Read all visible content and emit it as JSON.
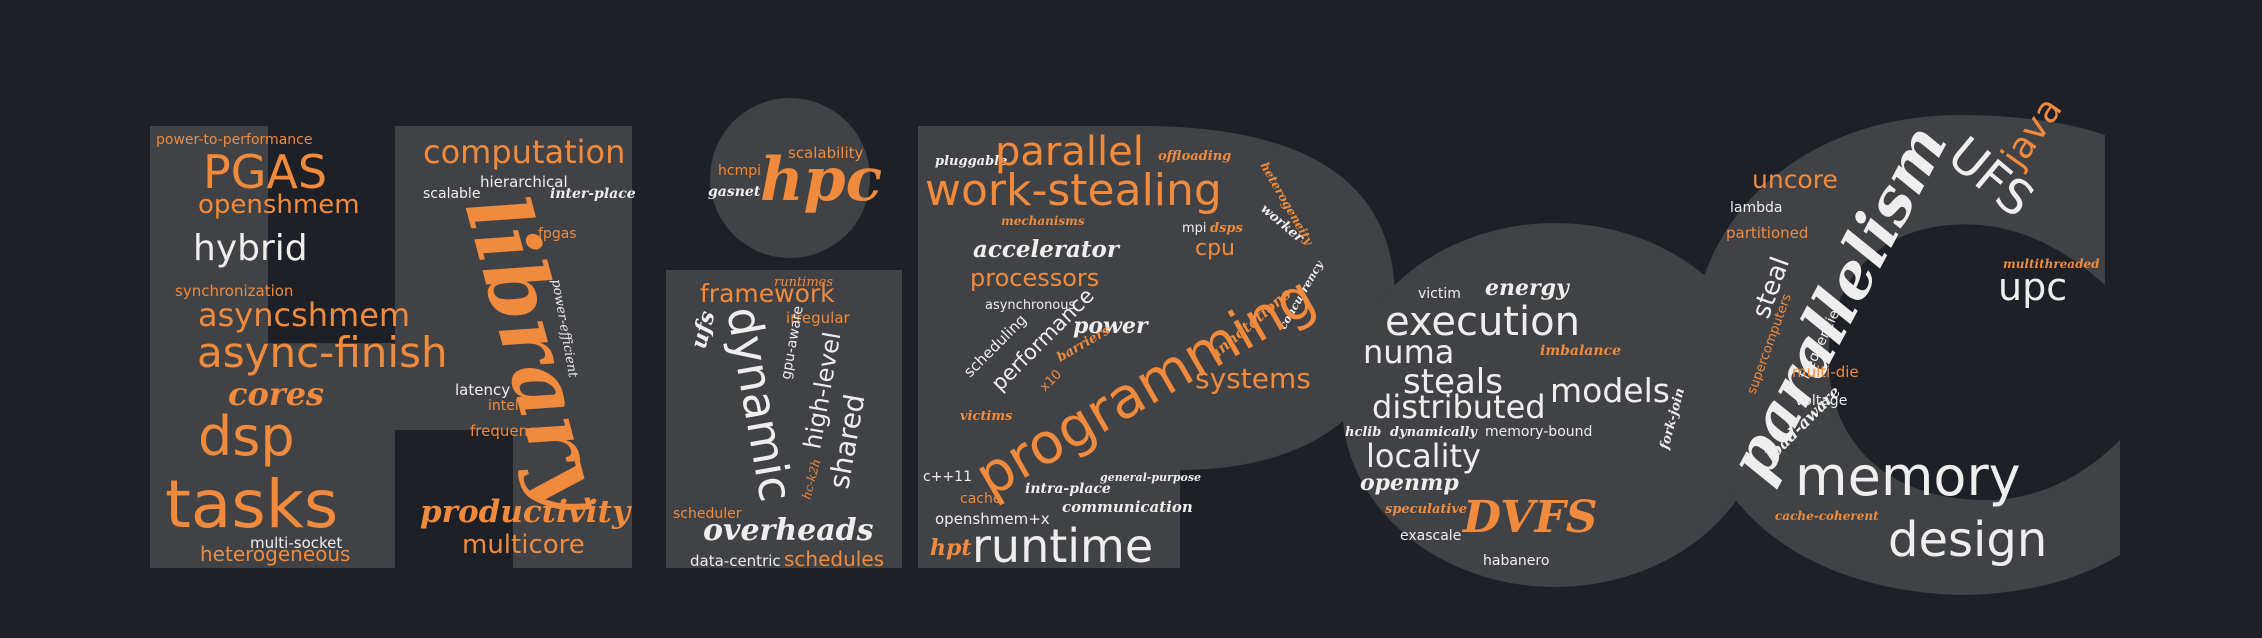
{
  "colors": {
    "background": "#1d2026",
    "letters": "#414245",
    "orange": "#f08a3c",
    "white": "#eeeeee"
  },
  "letters": [
    "H",
    "i",
    "P",
    "e",
    "C"
  ],
  "words": [
    {
      "id": "w-power-to-performance",
      "text": "power-to-performance"
    },
    {
      "id": "w-pgas",
      "text": "PGAS"
    },
    {
      "id": "w-openshmem",
      "text": "openshmem"
    },
    {
      "id": "w-hybrid",
      "text": "hybrid"
    },
    {
      "id": "w-synchronization",
      "text": "synchronization"
    },
    {
      "id": "w-asyncshmem",
      "text": "asyncshmem"
    },
    {
      "id": "w-async-finish",
      "text": "async-finish"
    },
    {
      "id": "w-cores",
      "text": "cores"
    },
    {
      "id": "w-dsp",
      "text": "dsp"
    },
    {
      "id": "w-tasks",
      "text": "tasks"
    },
    {
      "id": "w-multi-socket",
      "text": "multi-socket"
    },
    {
      "id": "w-heterogeneous",
      "text": "heterogeneous"
    },
    {
      "id": "w-computation",
      "text": "computation"
    },
    {
      "id": "w-hierarchical",
      "text": "hierarchical"
    },
    {
      "id": "w-scalable",
      "text": "scalable"
    },
    {
      "id": "w-inter-place",
      "text": "inter-place"
    },
    {
      "id": "w-library",
      "text": "library"
    },
    {
      "id": "w-fpgas",
      "text": "fpgas"
    },
    {
      "id": "w-power-efficient",
      "text": "power-efficient"
    },
    {
      "id": "w-latency",
      "text": "latency"
    },
    {
      "id": "w-intel",
      "text": "intel"
    },
    {
      "id": "w-frequency",
      "text": "frequency"
    },
    {
      "id": "w-productivity",
      "text": "productivity"
    },
    {
      "id": "w-multicore",
      "text": "multicore"
    },
    {
      "id": "w-hcmpi",
      "text": "hcmpi"
    },
    {
      "id": "w-gasnet",
      "text": "gasnet"
    },
    {
      "id": "w-hpc",
      "text": "hpc"
    },
    {
      "id": "w-scalability",
      "text": "scalability"
    },
    {
      "id": "w-runtimes",
      "text": "runtimes"
    },
    {
      "id": "w-framework",
      "text": "framework"
    },
    {
      "id": "w-irregular",
      "text": "irregular"
    },
    {
      "id": "w-ufs-lower",
      "text": "ufs"
    },
    {
      "id": "w-dynamic",
      "text": "dynamic"
    },
    {
      "id": "w-gpu-aware",
      "text": "gpu-aware"
    },
    {
      "id": "w-high-level",
      "text": "high-level"
    },
    {
      "id": "w-shared",
      "text": "shared"
    },
    {
      "id": "w-hc-k2h",
      "text": "hc-k2h"
    },
    {
      "id": "w-scheduler",
      "text": "scheduler"
    },
    {
      "id": "w-overheads",
      "text": "overheads"
    },
    {
      "id": "w-data-centric",
      "text": "data-centric"
    },
    {
      "id": "w-schedules",
      "text": "schedules"
    },
    {
      "id": "w-pluggable",
      "text": "pluggable"
    },
    {
      "id": "w-parallel",
      "text": "parallel"
    },
    {
      "id": "w-offloading",
      "text": "offloading"
    },
    {
      "id": "w-heterogeneity",
      "text": "heterogeneity"
    },
    {
      "id": "w-work-stealing",
      "text": "work-stealing"
    },
    {
      "id": "w-mechanisms",
      "text": "mechanisms"
    },
    {
      "id": "w-mpi",
      "text": "mpi"
    },
    {
      "id": "w-dsps",
      "text": "dsps"
    },
    {
      "id": "w-worker",
      "text": "worker"
    },
    {
      "id": "w-cpu",
      "text": "cpu"
    },
    {
      "id": "w-accelerator",
      "text": "accelerator"
    },
    {
      "id": "w-processors",
      "text": "processors"
    },
    {
      "id": "w-asynchronous",
      "text": "asynchronous"
    },
    {
      "id": "w-power",
      "text": "power"
    },
    {
      "id": "w-scheduling",
      "text": "scheduling"
    },
    {
      "id": "w-performance",
      "text": "performance"
    },
    {
      "id": "w-x10",
      "text": "x10"
    },
    {
      "id": "w-barriers",
      "text": "barriers"
    },
    {
      "id": "w-annotations",
      "text": "annotations"
    },
    {
      "id": "w-concurrency",
      "text": "concurrency"
    },
    {
      "id": "w-systems",
      "text": "systems"
    },
    {
      "id": "w-victims",
      "text": "victims"
    },
    {
      "id": "w-programming",
      "text": "programming"
    },
    {
      "id": "w-cpp11",
      "text": "c++11"
    },
    {
      "id": "w-intra-place",
      "text": "intra-place"
    },
    {
      "id": "w-general-purpose",
      "text": "general-purpose"
    },
    {
      "id": "w-cache",
      "text": "cache"
    },
    {
      "id": "w-communication",
      "text": "communication"
    },
    {
      "id": "w-openshmem-x",
      "text": "openshmem+x"
    },
    {
      "id": "w-hpt",
      "text": "hpt"
    },
    {
      "id": "w-runtime",
      "text": "runtime"
    },
    {
      "id": "w-energy",
      "text": "energy"
    },
    {
      "id": "w-victim",
      "text": "victim"
    },
    {
      "id": "w-execution",
      "text": "execution"
    },
    {
      "id": "w-numa",
      "text": "numa"
    },
    {
      "id": "w-imbalance",
      "text": "imbalance"
    },
    {
      "id": "w-steals",
      "text": "steals"
    },
    {
      "id": "w-models",
      "text": "models"
    },
    {
      "id": "w-distributed",
      "text": "distributed"
    },
    {
      "id": "w-fork-join",
      "text": "fork-join"
    },
    {
      "id": "w-hclib",
      "text": "hclib"
    },
    {
      "id": "w-dynamically",
      "text": "dynamically"
    },
    {
      "id": "w-memory-bound",
      "text": "memory-bound"
    },
    {
      "id": "w-locality",
      "text": "locality"
    },
    {
      "id": "w-openmp",
      "text": "openmp"
    },
    {
      "id": "w-speculative",
      "text": "speculative"
    },
    {
      "id": "w-dvfs",
      "text": "DVFS"
    },
    {
      "id": "w-exascale",
      "text": "exascale"
    },
    {
      "id": "w-habanero",
      "text": "habanero"
    },
    {
      "id": "w-uncore",
      "text": "uncore"
    },
    {
      "id": "w-lambda",
      "text": "lambda"
    },
    {
      "id": "w-partitioned",
      "text": "partitioned"
    },
    {
      "id": "w-parallelism",
      "text": "parallelism"
    },
    {
      "id": "w-ufs-upper",
      "text": "UFS"
    },
    {
      "id": "w-java",
      "text": "java"
    },
    {
      "id": "w-multithreaded",
      "text": "multithreaded"
    },
    {
      "id": "w-upc",
      "text": "upc"
    },
    {
      "id": "w-steal",
      "text": "steal"
    },
    {
      "id": "w-supercomputers",
      "text": "supercomputers"
    },
    {
      "id": "w-frequencies",
      "text": "frequencies"
    },
    {
      "id": "w-multi-die",
      "text": "multi-die"
    },
    {
      "id": "w-voltage",
      "text": "voltage"
    },
    {
      "id": "w-load-aware",
      "text": "load-aware"
    },
    {
      "id": "w-memory",
      "text": "memory"
    },
    {
      "id": "w-cache-coherent",
      "text": "cache-coherent"
    },
    {
      "id": "w-design",
      "text": "design"
    }
  ]
}
